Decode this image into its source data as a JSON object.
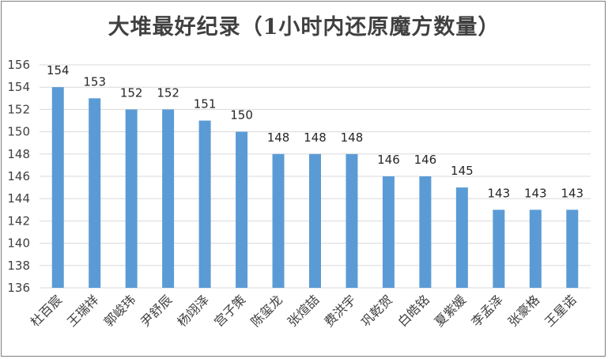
{
  "chart_data": {
    "type": "bar",
    "title": "大堆最好纪录（1小时内还原魔方数量）",
    "xlabel": "",
    "ylabel": "",
    "ylim": [
      136,
      156
    ],
    "ytick_step": 2,
    "grid": true,
    "bar_color": "#5b9bd5",
    "categories": [
      "杜百宸",
      "王瑞祥",
      "郭峻玮",
      "尹舒辰",
      "杨翊泽",
      "宫子策",
      "陈玺龙",
      "张煊喆",
      "费洪宇",
      "巩乾贺",
      "白皓铭",
      "夏紫媛",
      "李孟泽",
      "张豪格",
      "王星诺"
    ],
    "values": [
      154,
      153,
      152,
      152,
      151,
      150,
      148,
      148,
      148,
      146,
      146,
      145,
      143,
      143,
      143
    ]
  }
}
